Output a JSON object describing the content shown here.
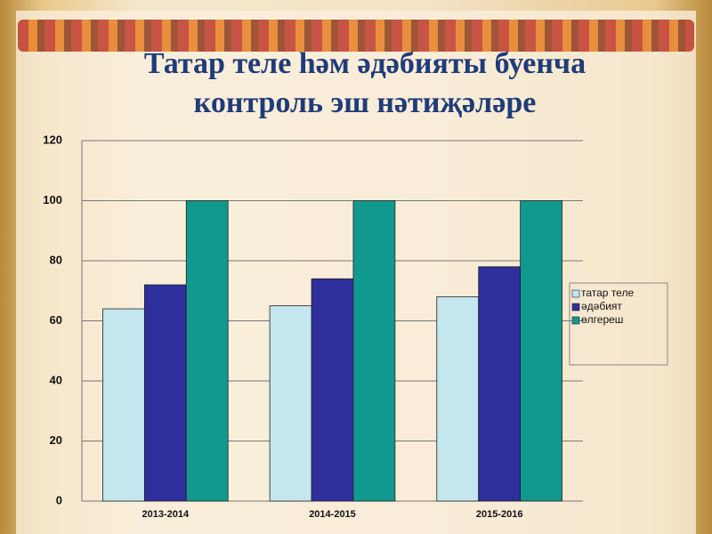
{
  "chart_data": {
    "type": "bar",
    "title": "Татар теле һәм әдәбияты буенча контроль эш нәтиҗәләре",
    "categories": [
      "2013-2014",
      "2014-2015",
      "2015-2016"
    ],
    "series": [
      {
        "name": "татар теле",
        "color": "#c4e6ef",
        "values": [
          64,
          65,
          68
        ]
      },
      {
        "name": "әдәбият",
        "color": "#2e2e9c",
        "values": [
          72,
          74,
          78
        ]
      },
      {
        "name": "өлгереш",
        "color": "#12998f",
        "values": [
          100,
          100,
          100
        ]
      }
    ],
    "ylim": [
      0,
      120
    ],
    "yticks": [
      0,
      20,
      40,
      60,
      80,
      100,
      120
    ],
    "grid": true,
    "legend": "right"
  }
}
